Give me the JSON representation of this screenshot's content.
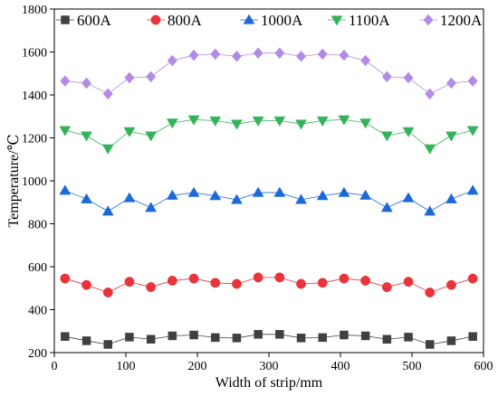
{
  "chart_data": {
    "type": "line",
    "xlabel": "Width of strip/mm",
    "ylabel": "Temperature/℃",
    "xlim": [
      0,
      600
    ],
    "ylim": [
      200,
      1800
    ],
    "xticks": [
      "0",
      "100",
      "200",
      "300",
      "400",
      "500",
      "600"
    ],
    "yticks": [
      "200",
      "400",
      "600",
      "800",
      "1000",
      "1200",
      "1400",
      "1600",
      "1800"
    ],
    "grid": false,
    "legend_position": "top",
    "x": [
      15,
      45,
      75,
      105,
      135,
      165,
      195,
      225,
      255,
      285,
      315,
      345,
      375,
      405,
      435,
      465,
      495,
      525,
      555,
      585
    ],
    "series": [
      {
        "name": "600A",
        "marker": "square",
        "color": "#404040",
        "values": [
          275,
          255,
          238,
          272,
          262,
          278,
          282,
          270,
          268,
          285,
          285,
          268,
          270,
          282,
          278,
          262,
          272,
          238,
          255,
          275
        ]
      },
      {
        "name": "800A",
        "marker": "circle",
        "color": "#e8343a",
        "values": [
          545,
          515,
          480,
          530,
          505,
          535,
          545,
          525,
          520,
          550,
          550,
          520,
          525,
          545,
          535,
          505,
          530,
          480,
          515,
          545
        ]
      },
      {
        "name": "1000A",
        "marker": "triangle-up",
        "color": "#1c6ad8",
        "values": [
          955,
          915,
          858,
          920,
          875,
          932,
          945,
          930,
          912,
          945,
          945,
          912,
          930,
          945,
          932,
          875,
          920,
          858,
          915,
          955
        ]
      },
      {
        "name": "1100A",
        "marker": "triangle-down",
        "color": "#35b35a",
        "values": [
          1235,
          1210,
          1150,
          1230,
          1210,
          1270,
          1285,
          1280,
          1265,
          1280,
          1280,
          1265,
          1280,
          1285,
          1270,
          1210,
          1230,
          1150,
          1210,
          1235
        ]
      },
      {
        "name": "1200A",
        "marker": "diamond",
        "color": "#b28be6",
        "values": [
          1465,
          1455,
          1405,
          1480,
          1485,
          1560,
          1585,
          1590,
          1580,
          1595,
          1595,
          1580,
          1590,
          1585,
          1560,
          1485,
          1480,
          1405,
          1455,
          1465
        ]
      }
    ]
  }
}
